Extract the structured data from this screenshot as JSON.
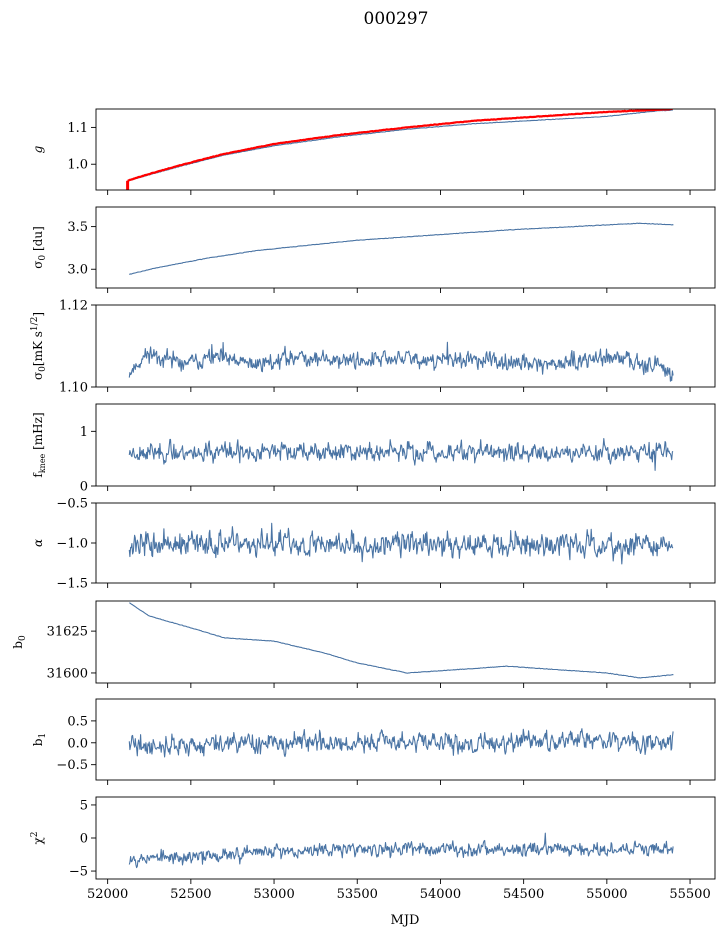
{
  "figure": {
    "title": "000297",
    "xlabel": "MJD"
  },
  "chart_data": [
    {
      "type": "line",
      "panel": "g",
      "ylabel": "g",
      "xlim": [
        51930,
        55650
      ],
      "ylim": [
        0.93,
        1.15
      ],
      "yticks": [
        "1.0",
        "1.1"
      ],
      "ytick_values": [
        1.0,
        1.1
      ],
      "series": [
        {
          "name": "",
          "color": "#4a74a4",
          "x": [
            52120,
            52200,
            52400,
            52700,
            53000,
            53400,
            53800,
            54200,
            54600,
            55000,
            55300,
            55400
          ],
          "y": [
            0.955,
            0.965,
            0.99,
            1.025,
            1.05,
            1.075,
            1.095,
            1.11,
            1.12,
            1.13,
            1.145,
            1.147
          ]
        },
        {
          "name": "",
          "color": "#ff0000",
          "x": [
            52120,
            52200,
            52400,
            52700,
            53000,
            53400,
            53800,
            54200,
            54600,
            55000,
            55300,
            55400
          ],
          "y": [
            0.955,
            0.967,
            0.993,
            1.028,
            1.055,
            1.08,
            1.1,
            1.118,
            1.13,
            1.142,
            1.148,
            1.15
          ]
        }
      ]
    },
    {
      "type": "line",
      "panel": "sigma0-du",
      "ylabel": "σ0 [du]",
      "xlim": [
        51930,
        55650
      ],
      "ylim": [
        2.78,
        3.73
      ],
      "yticks": [
        "3.0",
        "3.5"
      ],
      "ytick_values": [
        3.0,
        3.5
      ],
      "series": [
        {
          "name": "",
          "color": "#4a74a4",
          "x": [
            52130,
            52300,
            52600,
            52900,
            53200,
            53500,
            53800,
            54100,
            54400,
            54700,
            55000,
            55200,
            55400
          ],
          "y": [
            2.94,
            3.02,
            3.13,
            3.22,
            3.28,
            3.34,
            3.38,
            3.42,
            3.46,
            3.49,
            3.52,
            3.54,
            3.52
          ]
        }
      ]
    },
    {
      "type": "line",
      "panel": "sigma0-mks",
      "ylabel": "σ0[mK s1/2]",
      "xlim": [
        51930,
        55650
      ],
      "ylim": [
        1.1,
        1.12
      ],
      "yticks": [
        "1.10",
        "1.12"
      ],
      "ytick_values": [
        1.1,
        1.12
      ],
      "series": [
        {
          "name": "",
          "color": "#4a74a4",
          "base": [
            1.1035,
            1.1085,
            1.1055,
            1.1075,
            1.1055,
            1.1075,
            1.1065,
            1.107,
            1.1065,
            1.1055,
            1.107,
            1.1065,
            1.1035
          ],
          "base_x": [
            52130,
            52250,
            52450,
            52600,
            52850,
            53150,
            53400,
            53800,
            54200,
            54600,
            55000,
            55200,
            55400
          ],
          "noise": 0.0012,
          "seed": 11
        }
      ]
    },
    {
      "type": "line",
      "panel": "fknee",
      "ylabel": "fknee [mHz]",
      "xlim": [
        51930,
        55650
      ],
      "ylim": [
        0,
        1.5
      ],
      "yticks": [
        "0",
        "1"
      ],
      "ytick_values": [
        0,
        1
      ],
      "series": [
        {
          "name": "",
          "color": "#4a74a4",
          "base": [
            0.62,
            0.62
          ],
          "base_x": [
            52130,
            55400
          ],
          "noise": 0.1,
          "seed": 23
        }
      ]
    },
    {
      "type": "line",
      "panel": "alpha",
      "ylabel": "α",
      "xlim": [
        51930,
        55650
      ],
      "ylim": [
        -1.5,
        -0.5
      ],
      "yticks": [
        "−1.5",
        "−1.0",
        "−0.5"
      ],
      "ytick_values": [
        -1.5,
        -1.0,
        -0.5
      ],
      "series": [
        {
          "name": "",
          "color": "#4a74a4",
          "base": [
            -1.02,
            -1.02
          ],
          "base_x": [
            52130,
            55400
          ],
          "noise": 0.09,
          "seed": 37
        }
      ]
    },
    {
      "type": "line",
      "panel": "b0",
      "ylabel": "b0",
      "xlim": [
        51930,
        55650
      ],
      "ylim": [
        31594,
        31643
      ],
      "yticks": [
        "31600",
        "31625"
      ],
      "ytick_values": [
        31600,
        31625
      ],
      "series": [
        {
          "name": "",
          "color": "#4a74a4",
          "x": [
            52130,
            52250,
            52500,
            52700,
            53000,
            53300,
            53500,
            53800,
            54100,
            54400,
            54700,
            55000,
            55200,
            55300,
            55400
          ],
          "y": [
            31642,
            31634,
            31627,
            31621,
            31619,
            31612,
            31606,
            31600,
            31602,
            31604,
            31602,
            31600,
            31597,
            31598,
            31599
          ]
        }
      ]
    },
    {
      "type": "line",
      "panel": "b1",
      "ylabel": "b1",
      "xlim": [
        51930,
        55650
      ],
      "ylim": [
        -0.85,
        1.0
      ],
      "yticks": [
        "−0.5",
        "0.0",
        "0.5"
      ],
      "ytick_values": [
        -0.5,
        0.0,
        0.5
      ],
      "series": [
        {
          "name": "",
          "color": "#4a74a4",
          "base": [
            -0.1,
            -0.05,
            0.0,
            0.0,
            0.0,
            0.05,
            0.0
          ],
          "base_x": [
            52130,
            52600,
            53100,
            53700,
            54300,
            54900,
            55400
          ],
          "noise": 0.13,
          "seed": 41
        }
      ]
    },
    {
      "type": "line",
      "panel": "chi2",
      "ylabel": "χ2",
      "xlim": [
        51930,
        55650
      ],
      "ylim": [
        -6.2,
        6.2
      ],
      "yticks": [
        "−5",
        "0",
        "5"
      ],
      "ytick_values": [
        -5,
        0,
        5
      ],
      "xticks": [
        "52000",
        "52500",
        "53000",
        "53500",
        "54000",
        "54500",
        "55000",
        "55500"
      ],
      "xtick_values": [
        52000,
        52500,
        53000,
        53500,
        54000,
        54500,
        55000,
        55500
      ],
      "series": [
        {
          "name": "",
          "color": "#4a74a4",
          "base": [
            -3.0,
            -3.0,
            -2.2,
            -1.8,
            -1.6,
            -1.6,
            -1.6
          ],
          "base_x": [
            52130,
            52400,
            52800,
            53400,
            54000,
            54800,
            55400
          ],
          "noise": 0.6,
          "seed": 53
        }
      ]
    }
  ]
}
